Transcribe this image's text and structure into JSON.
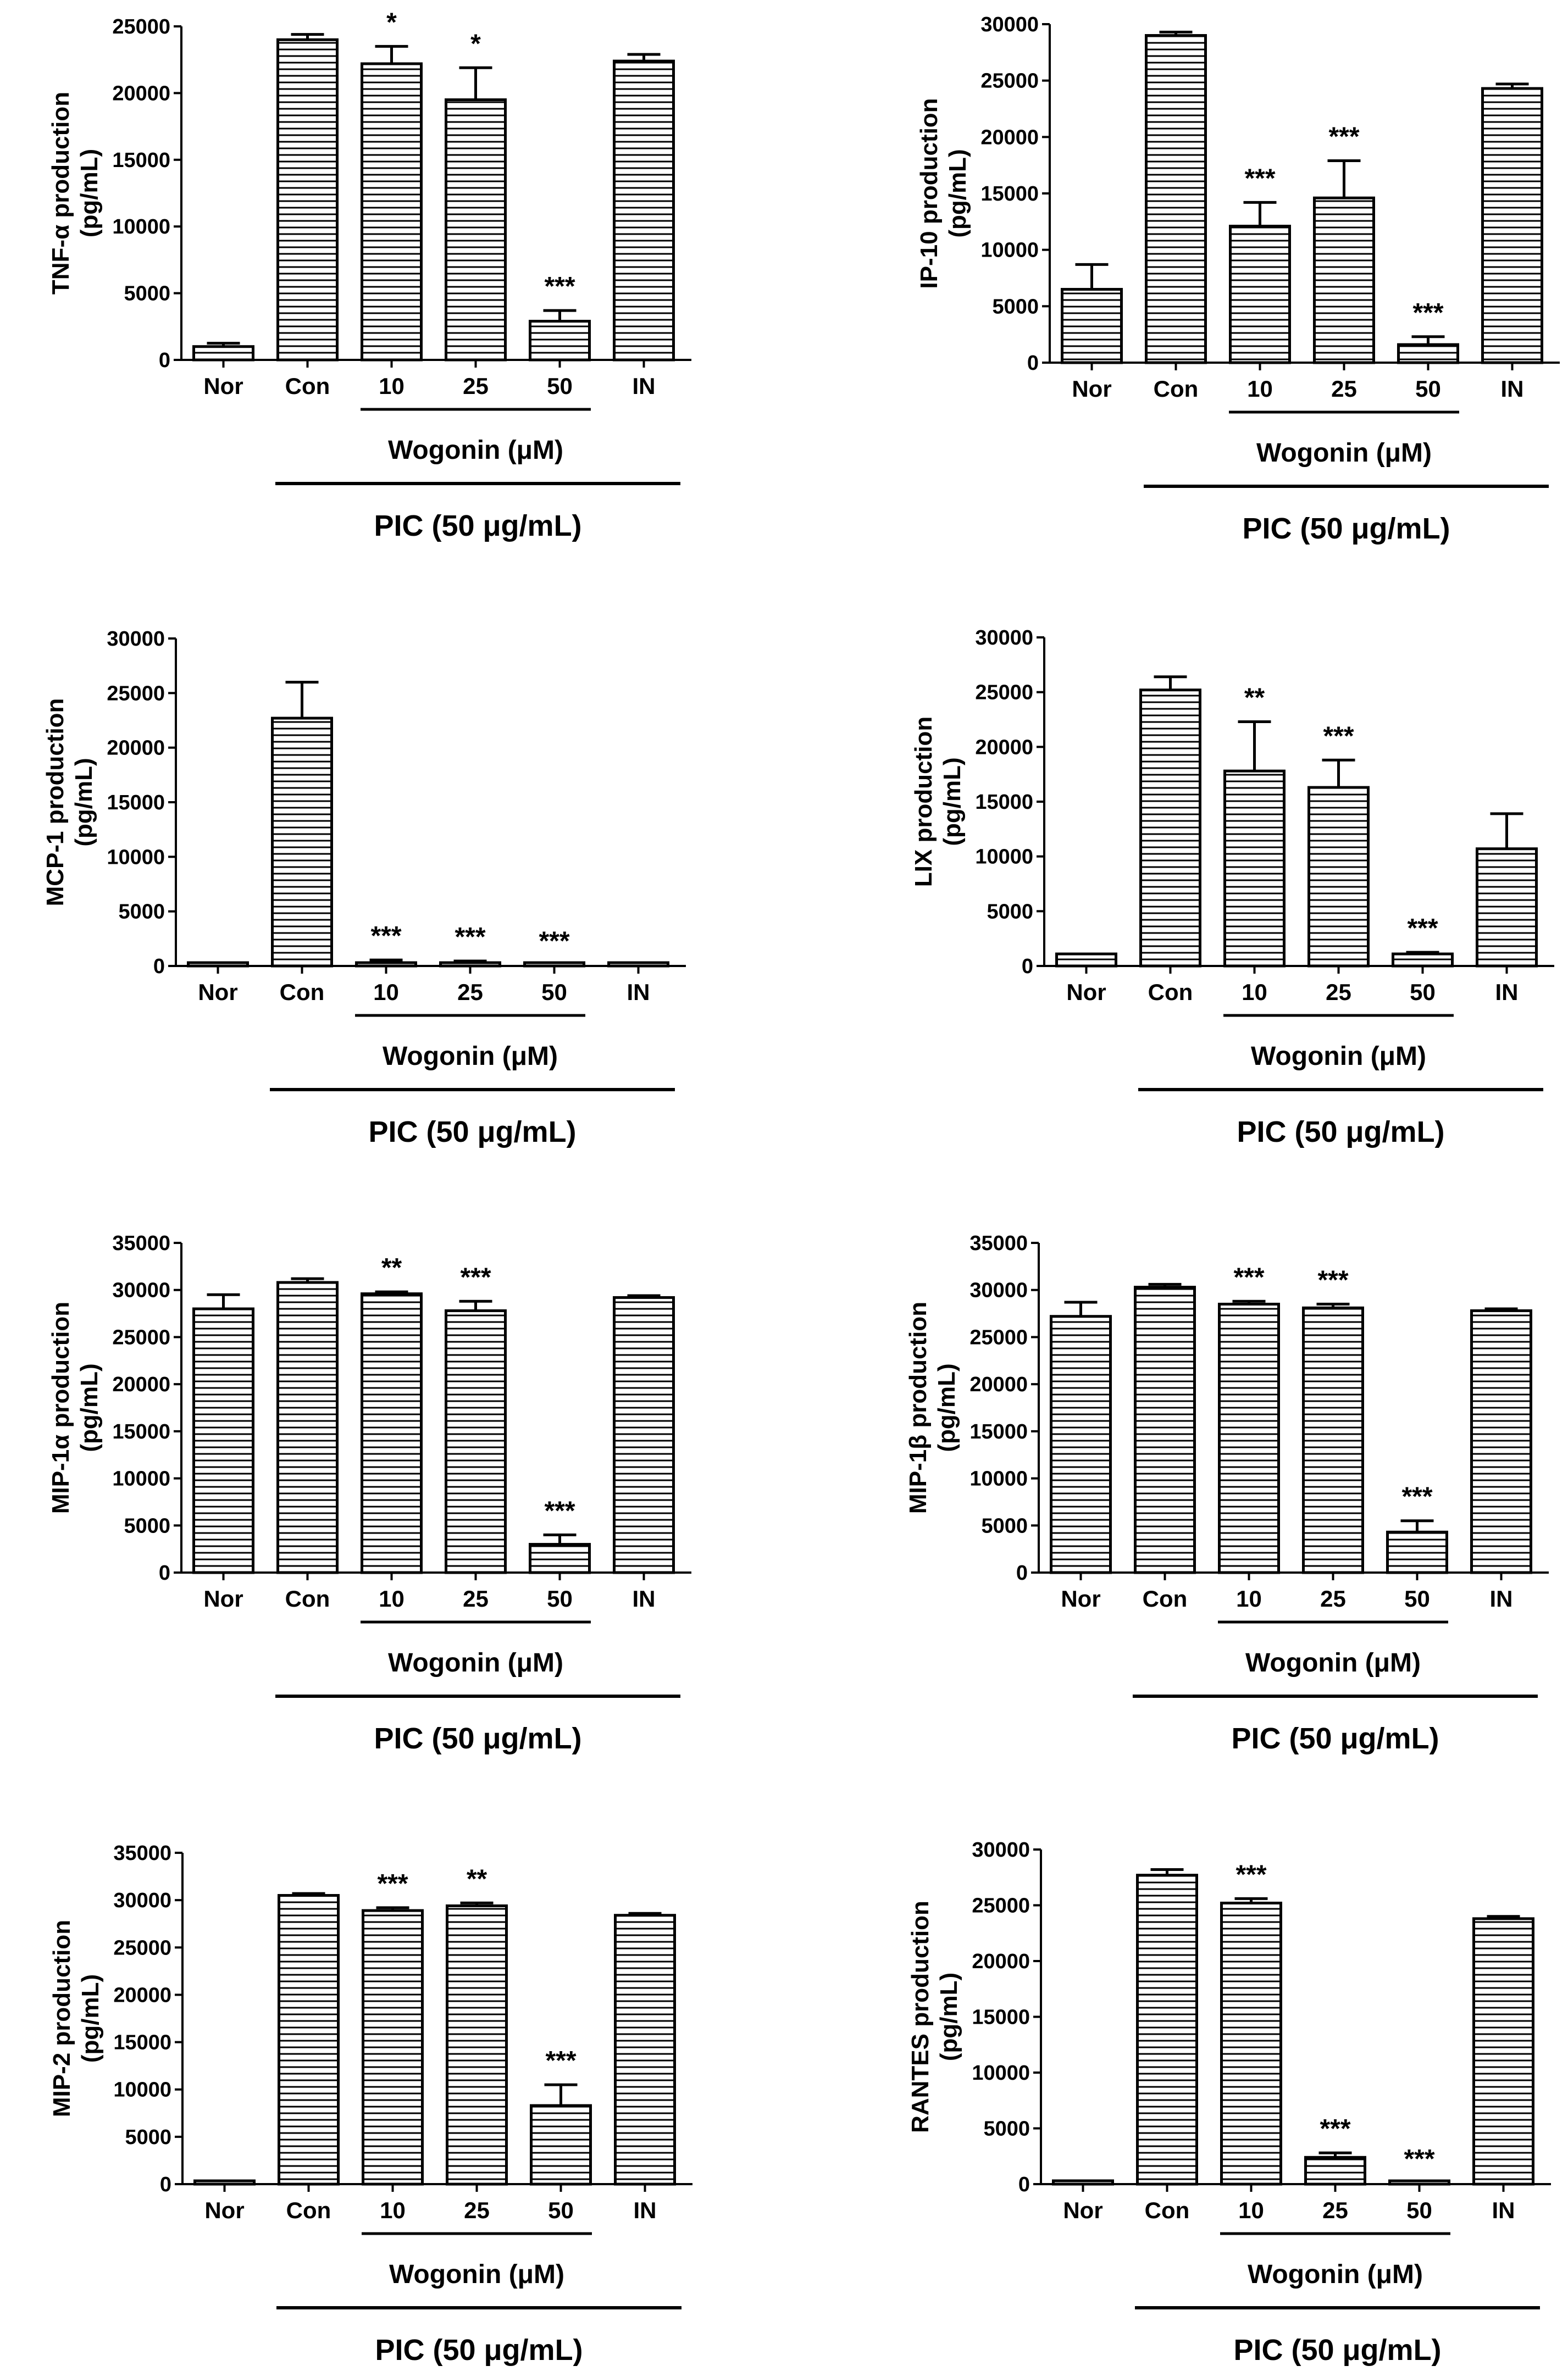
{
  "chart_data": [
    {
      "type": "bar",
      "title": "",
      "ylabel_line1": "TNF-α production",
      "ylabel_line2": "(pg/mL)",
      "categories": [
        "Nor",
        "Con",
        "10",
        "25",
        "50",
        "IN"
      ],
      "values": [
        1000,
        24000,
        22200,
        19500,
        2900,
        22400
      ],
      "errors": [
        250,
        400,
        1300,
        2400,
        800,
        500
      ],
      "significance": [
        "",
        "",
        "*",
        "*",
        "***",
        ""
      ],
      "ylim": [
        0,
        25000
      ],
      "yticks": [
        0,
        5000,
        10000,
        15000,
        20000,
        25000
      ],
      "group_label": "Wogonin (μM)",
      "treatment_label": "PIC (50 μg/mL)"
    },
    {
      "type": "bar",
      "title": "",
      "ylabel_line1": "IP-10 production",
      "ylabel_line2": "(pg/mL)",
      "categories": [
        "Nor",
        "Con",
        "10",
        "25",
        "50",
        "IN"
      ],
      "values": [
        6500,
        29000,
        12100,
        14600,
        1600,
        24300
      ],
      "errors": [
        2200,
        300,
        2100,
        3300,
        700,
        400
      ],
      "significance": [
        "",
        "",
        "***",
        "***",
        "***",
        ""
      ],
      "ylim": [
        0,
        30000
      ],
      "yticks": [
        0,
        5000,
        10000,
        15000,
        20000,
        25000,
        30000
      ],
      "group_label": "Wogonin (μM)",
      "treatment_label": "PIC (50 μg/mL)"
    },
    {
      "type": "bar",
      "title": "",
      "ylabel_line1": "MCP-1 production",
      "ylabel_line2": "(pg/mL)",
      "categories": [
        "Nor",
        "Con",
        "10",
        "25",
        "50",
        "IN"
      ],
      "values": [
        80,
        22700,
        300,
        250,
        80,
        80
      ],
      "errors": [
        0,
        3300,
        250,
        200,
        0,
        0
      ],
      "significance": [
        "",
        "",
        "***",
        "***",
        "***",
        ""
      ],
      "ylim": [
        0,
        30000
      ],
      "yticks": [
        0,
        5000,
        10000,
        15000,
        20000,
        25000,
        30000
      ],
      "group_label": "Wogonin (μM)",
      "treatment_label": "PIC (50 μg/mL)"
    },
    {
      "type": "bar",
      "title": "",
      "ylabel_line1": "LIX production",
      "ylabel_line2": "(pg/mL)",
      "categories": [
        "Nor",
        "Con",
        "10",
        "25",
        "50",
        "IN"
      ],
      "values": [
        1100,
        25200,
        17800,
        16300,
        1100,
        10700
      ],
      "errors": [
        0,
        1200,
        4500,
        2500,
        150,
        3200
      ],
      "significance": [
        "",
        "",
        "**",
        "***",
        "***",
        ""
      ],
      "ylim": [
        0,
        30000
      ],
      "yticks": [
        0,
        5000,
        10000,
        15000,
        20000,
        25000,
        30000
      ],
      "group_label": "Wogonin (μM)",
      "treatment_label": "PIC (50 μg/mL)"
    },
    {
      "type": "bar",
      "title": "",
      "ylabel_line1": "MIP-1α production",
      "ylabel_line2": "(pg/mL)",
      "categories": [
        "Nor",
        "Con",
        "10",
        "25",
        "50",
        "IN"
      ],
      "values": [
        28000,
        30800,
        29600,
        27800,
        3000,
        29200
      ],
      "errors": [
        1500,
        400,
        200,
        1000,
        1000,
        200
      ],
      "significance": [
        "",
        "",
        "**",
        "***",
        "***",
        ""
      ],
      "ylim": [
        0,
        35000
      ],
      "yticks": [
        0,
        5000,
        10000,
        15000,
        20000,
        25000,
        30000,
        35000
      ],
      "group_label": "Wogonin (μM)",
      "treatment_label": "PIC (50 μg/mL)"
    },
    {
      "type": "bar",
      "title": "",
      "ylabel_line1": "MIP-1β production",
      "ylabel_line2": "(pg/mL)",
      "categories": [
        "Nor",
        "Con",
        "10",
        "25",
        "50",
        "IN"
      ],
      "values": [
        27200,
        30300,
        28500,
        28100,
        4300,
        27800
      ],
      "errors": [
        1500,
        300,
        300,
        400,
        1200,
        200
      ],
      "significance": [
        "",
        "",
        "***",
        "***",
        "***",
        ""
      ],
      "ylim": [
        0,
        35000
      ],
      "yticks": [
        0,
        5000,
        10000,
        15000,
        20000,
        25000,
        30000,
        35000
      ],
      "group_label": "Wogonin (μM)",
      "treatment_label": "PIC (50 μg/mL)"
    },
    {
      "type": "bar",
      "title": "",
      "ylabel_line1": "MIP-2 production",
      "ylabel_line2": "(pg/mL)",
      "categories": [
        "Nor",
        "Con",
        "10",
        "25",
        "50",
        "IN"
      ],
      "values": [
        200,
        30500,
        28900,
        29400,
        8300,
        28400
      ],
      "errors": [
        0,
        200,
        300,
        300,
        2200,
        200
      ],
      "significance": [
        "",
        "",
        "***",
        "**",
        "***",
        ""
      ],
      "ylim": [
        0,
        35000
      ],
      "yticks": [
        0,
        5000,
        10000,
        15000,
        20000,
        25000,
        30000,
        35000
      ],
      "group_label": "Wogonin (μM)",
      "treatment_label": "PIC (50 μg/mL)"
    },
    {
      "type": "bar",
      "title": "",
      "ylabel_line1": "RANTES production",
      "ylabel_line2": "(pg/mL)",
      "categories": [
        "Nor",
        "Con",
        "10",
        "25",
        "50",
        "IN"
      ],
      "values": [
        300,
        27700,
        25200,
        2400,
        100,
        23800
      ],
      "errors": [
        0,
        500,
        400,
        400,
        0,
        200
      ],
      "significance": [
        "",
        "",
        "***",
        "***",
        "***",
        ""
      ],
      "ylim": [
        0,
        30000
      ],
      "yticks": [
        0,
        5000,
        10000,
        15000,
        20000,
        25000,
        30000
      ],
      "group_label": "Wogonin (μM)",
      "treatment_label": "PIC (50 μg/mL)"
    }
  ]
}
